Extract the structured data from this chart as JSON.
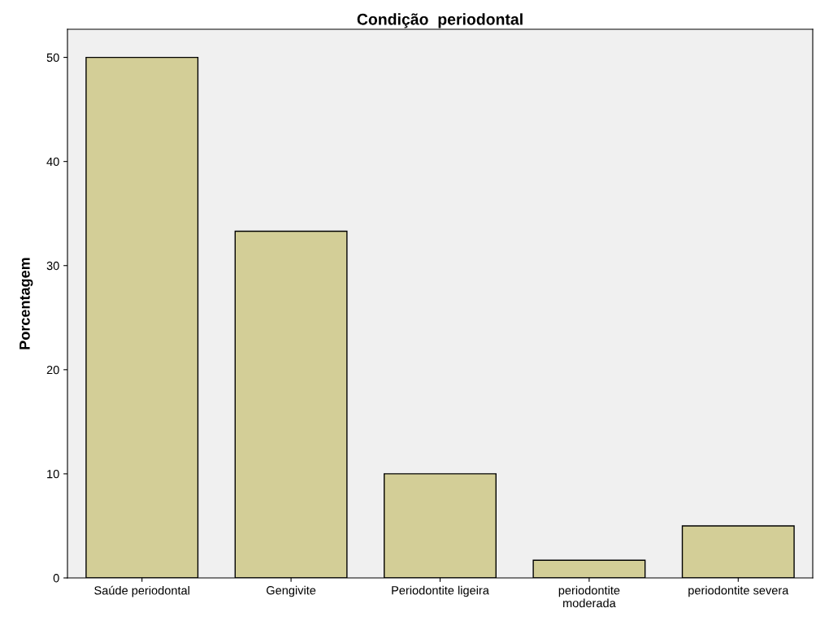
{
  "chart_data": {
    "type": "bar",
    "title": "Condição  periodontal",
    "ylabel": "Porcentagem",
    "categories": [
      "Saúde periodontal",
      "Gengivite",
      "Periodontite ligeira",
      "periodontite\nmoderada",
      "periodontite severa"
    ],
    "values": [
      50,
      33.3,
      10,
      1.7,
      5
    ],
    "color": "#d3ce97",
    "ylim": [
      0,
      52.7
    ],
    "yticks": [
      0,
      10,
      20,
      30,
      40,
      50
    ],
    "grid": false
  }
}
